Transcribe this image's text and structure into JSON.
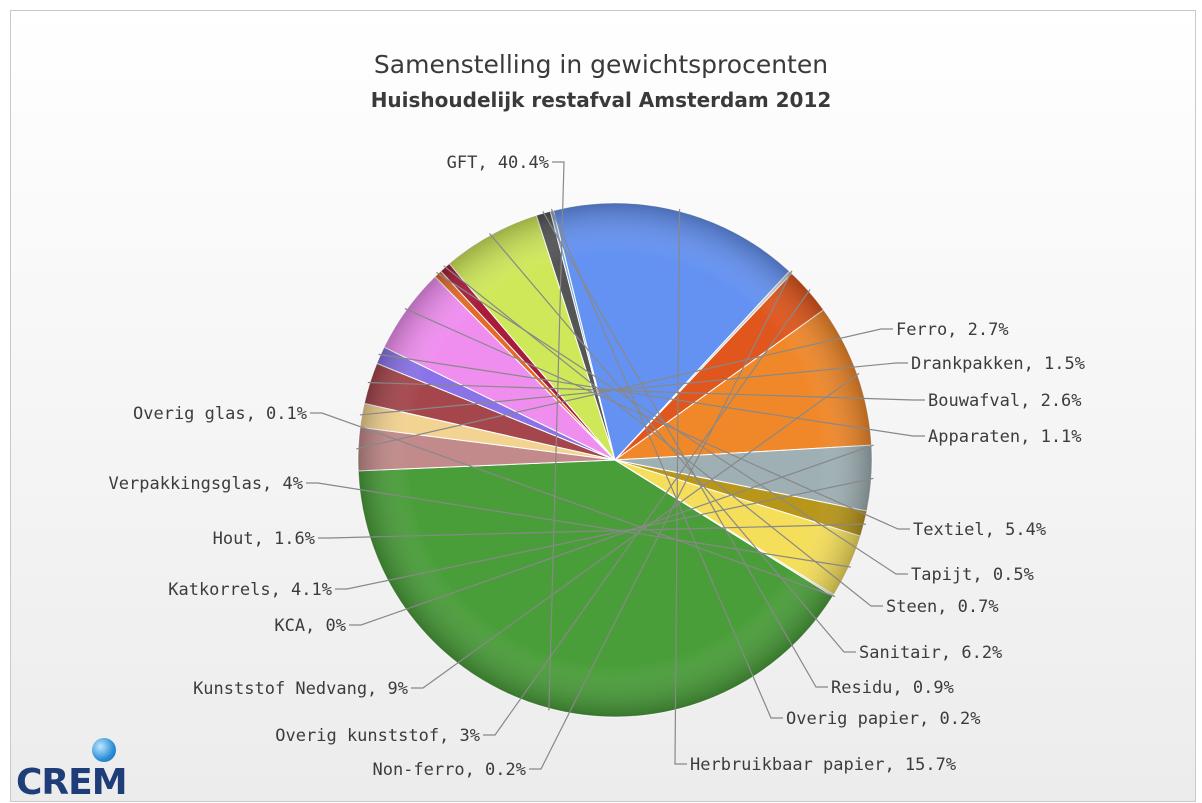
{
  "chart_data": {
    "type": "pie",
    "title": "Samenstelling in gewichtsprocenten",
    "subtitle": "Huishoudelijk restafval Amsterdam 2012",
    "slices": [
      {
        "label": "GFT, 40.4%",
        "value": 40.4,
        "color": "#4a9e3a"
      },
      {
        "label": "Ferro, 2.7%",
        "value": 2.7,
        "color": "#c28a8a"
      },
      {
        "label": "Drankpakken, 1.5%",
        "value": 1.5,
        "color": "#f3d391"
      },
      {
        "label": "Bouwafval, 2.6%",
        "value": 2.6,
        "color": "#a5464c"
      },
      {
        "label": "Apparaten, 1.1%",
        "value": 1.1,
        "color": "#8a72e8"
      },
      {
        "label": "Textiel, 5.4%",
        "value": 5.4,
        "color": "#f08ef0"
      },
      {
        "label": "Tapijt, 0.5%",
        "value": 0.5,
        "color": "#e26a2a"
      },
      {
        "label": "Steen, 0.7%",
        "value": 0.7,
        "color": "#a81c3a"
      },
      {
        "label": "Sanitair, 6.2%",
        "value": 6.2,
        "color": "#cfe85a"
      },
      {
        "label": "Residu, 0.9%",
        "value": 0.9,
        "color": "#555555"
      },
      {
        "label": "Overig papier, 0.2%",
        "value": 0.2,
        "color": "#7aaad0"
      },
      {
        "label": "Herbruikbaar papier, 15.7%",
        "value": 15.7,
        "color": "#6492f2"
      },
      {
        "label": "Non-ferro, 0.2%",
        "value": 0.2,
        "color": "#c9c9c9"
      },
      {
        "label": "Overig kunststof, 3%",
        "value": 3,
        "color": "#e0561c"
      },
      {
        "label": "Kunststof Nedvang, 9%",
        "value": 9,
        "color": "#f0882a"
      },
      {
        "label": "KCA, 0%",
        "value": 0,
        "color": "#999999"
      },
      {
        "label": "Katkorrels, 4.1%",
        "value": 4.1,
        "color": "#9fb0b4"
      },
      {
        "label": "Hout, 1.6%",
        "value": 1.6,
        "color": "#b8961a"
      },
      {
        "label": "Verpakkingsglas, 4%",
        "value": 4,
        "color": "#f5de5a"
      },
      {
        "label": "Overig glas, 0.1%",
        "value": 0.1,
        "color": "#d7dcb8"
      }
    ]
  },
  "logo": {
    "text": "CREM"
  }
}
